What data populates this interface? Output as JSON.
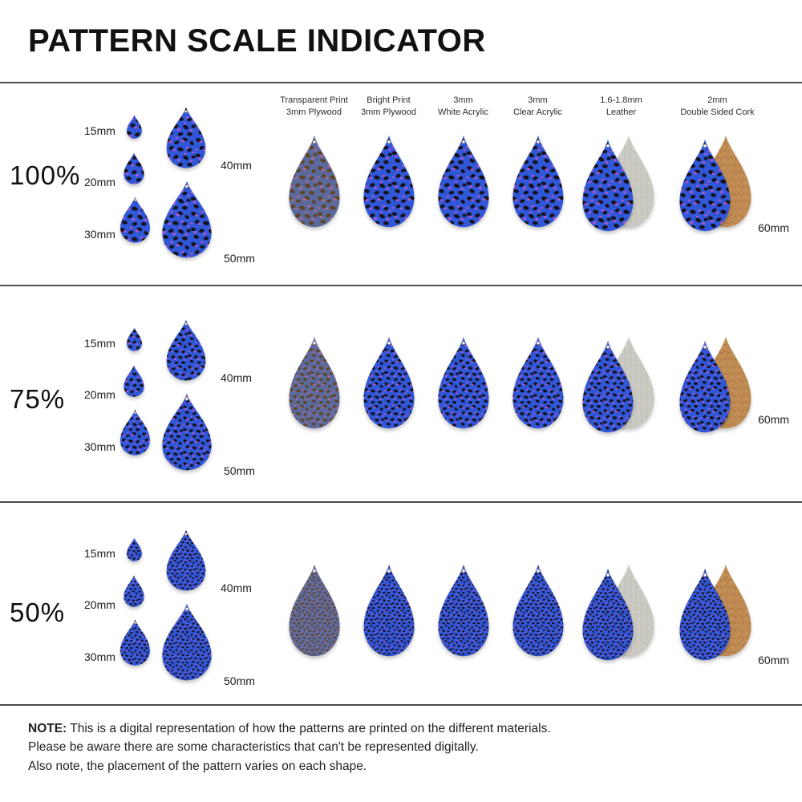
{
  "title": "PATTERN SCALE INDICATOR",
  "rows": [
    {
      "label": "100%",
      "scale_pct": 100
    },
    {
      "label": "75%",
      "scale_pct": 75
    },
    {
      "label": "50%",
      "scale_pct": 50
    }
  ],
  "sizes": [
    {
      "label": "15mm",
      "mm": 15
    },
    {
      "label": "20mm",
      "mm": 20
    },
    {
      "label": "30mm",
      "mm": 30
    },
    {
      "label": "40mm",
      "mm": 40
    },
    {
      "label": "50mm",
      "mm": 50
    },
    {
      "label": "60mm",
      "mm": 60
    }
  ],
  "materials": [
    {
      "name": "transparent-print-plywood",
      "label_line1": "Transparent Print",
      "label_line2": "3mm Plywood",
      "finish": "muted",
      "backing": null
    },
    {
      "name": "bright-print-plywood",
      "label_line1": "Bright Print",
      "label_line2": "3mm Plywood",
      "finish": "bright",
      "backing": null
    },
    {
      "name": "white-acrylic",
      "label_line1": "3mm",
      "label_line2": "White Acrylic",
      "finish": "bright",
      "backing": null
    },
    {
      "name": "clear-acrylic",
      "label_line1": "3mm",
      "label_line2": "Clear Acrylic",
      "finish": "bright",
      "backing": null
    },
    {
      "name": "leather",
      "label_line1": "1.6-1.8mm",
      "label_line2": "Leather",
      "finish": "bright",
      "backing": "leather"
    },
    {
      "name": "double-sided-cork",
      "label_line1": "2mm",
      "label_line2": "Double Sided Cork",
      "finish": "bright",
      "backing": "cork"
    }
  ],
  "pattern": {
    "name": "blue leopard print",
    "colors": {
      "bright_blue": "#2f57d8",
      "spot_black": "#16121c",
      "accent_purple": "#a855c9",
      "muted_blue": "#5a6a9e",
      "muted_spot": "#5e4526",
      "muted_accent": "#b2688f",
      "leather_gray": "#cac9c1",
      "cork_tan": "#bf8a52",
      "divider": "#4d4d4d"
    }
  },
  "note": {
    "prefix": "NOTE:",
    "lines": [
      "This is a digital representation of how the patterns are printed on the different materials.",
      "Please be aware there are some characteristics that can't be represented digitally.",
      "Also note, the placement of the pattern varies on each shape."
    ]
  }
}
